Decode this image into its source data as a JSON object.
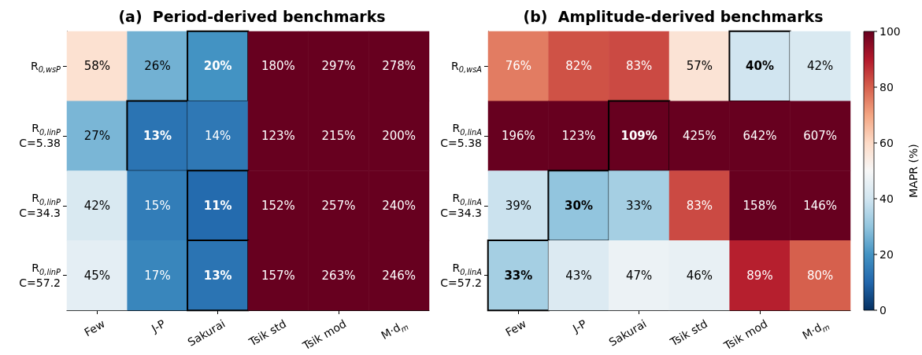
{
  "chart_data": [
    {
      "type": "heatmap",
      "title": "(a)  Period-derived benchmarks",
      "categories": [
        "Few",
        "J-P",
        "Sakurai",
        "Tsik std",
        "Tsik mod",
        "M·d$_{m}$"
      ],
      "y_categories": [
        "R$_{0,wsP}$",
        "R$_{0,linP}$\nC=5.38",
        "R$_{0,linP}$\nC=34.3",
        "R$_{0,linP}$\nC=57.2"
      ],
      "cells": [
        [
          58,
          26,
          20,
          180,
          297,
          278
        ],
        [
          27,
          13,
          14,
          123,
          215,
          200
        ],
        [
          42,
          15,
          11,
          152,
          257,
          240
        ],
        [
          45,
          17,
          13,
          157,
          263,
          246
        ]
      ],
      "cell_labels": [
        [
          "58%",
          "26%",
          "20%",
          "180%",
          "297%",
          "278%"
        ],
        [
          "27%",
          "13%",
          "14%",
          "123%",
          "215%",
          "200%"
        ],
        [
          "42%",
          "15%",
          "11%",
          "152%",
          "257%",
          "240%"
        ],
        [
          "45%",
          "17%",
          "13%",
          "157%",
          "263%",
          "246%"
        ]
      ]
    },
    {
      "type": "heatmap",
      "title": "(b)  Amplitude-derived benchmarks",
      "categories": [
        "Few",
        "J-P",
        "Sakurai",
        "Tsik std",
        "Tsik mod",
        "M·d$_{m}$"
      ],
      "y_categories": [
        "R$_{0,wsA}$",
        "R$_{0,linA}$\nC=5.38",
        "R$_{0,linA}$\nC=34.3",
        "R$_{0,linA}$\nC=57.2"
      ],
      "cells": [
        [
          76,
          82,
          83,
          57,
          40,
          42
        ],
        [
          196,
          123,
          109,
          425,
          642,
          607
        ],
        [
          39,
          30,
          33,
          83,
          158,
          146
        ],
        [
          33,
          43,
          47,
          46,
          89,
          80
        ]
      ],
      "cell_labels": [
        [
          "76%",
          "82%",
          "83%",
          "57%",
          "40%",
          "42%"
        ],
        [
          "196%",
          "123%",
          "109%",
          "425%",
          "642%",
          "607%"
        ],
        [
          "39%",
          "30%",
          "33%",
          "83%",
          "158%",
          "146%"
        ],
        [
          "33%",
          "43%",
          "47%",
          "46%",
          "89%",
          "80%"
        ]
      ],
      "clim": [
        0,
        100
      ],
      "cticks": [
        0,
        20,
        40,
        60,
        80,
        100
      ],
      "clabel": "MAPR (%)"
    }
  ]
}
